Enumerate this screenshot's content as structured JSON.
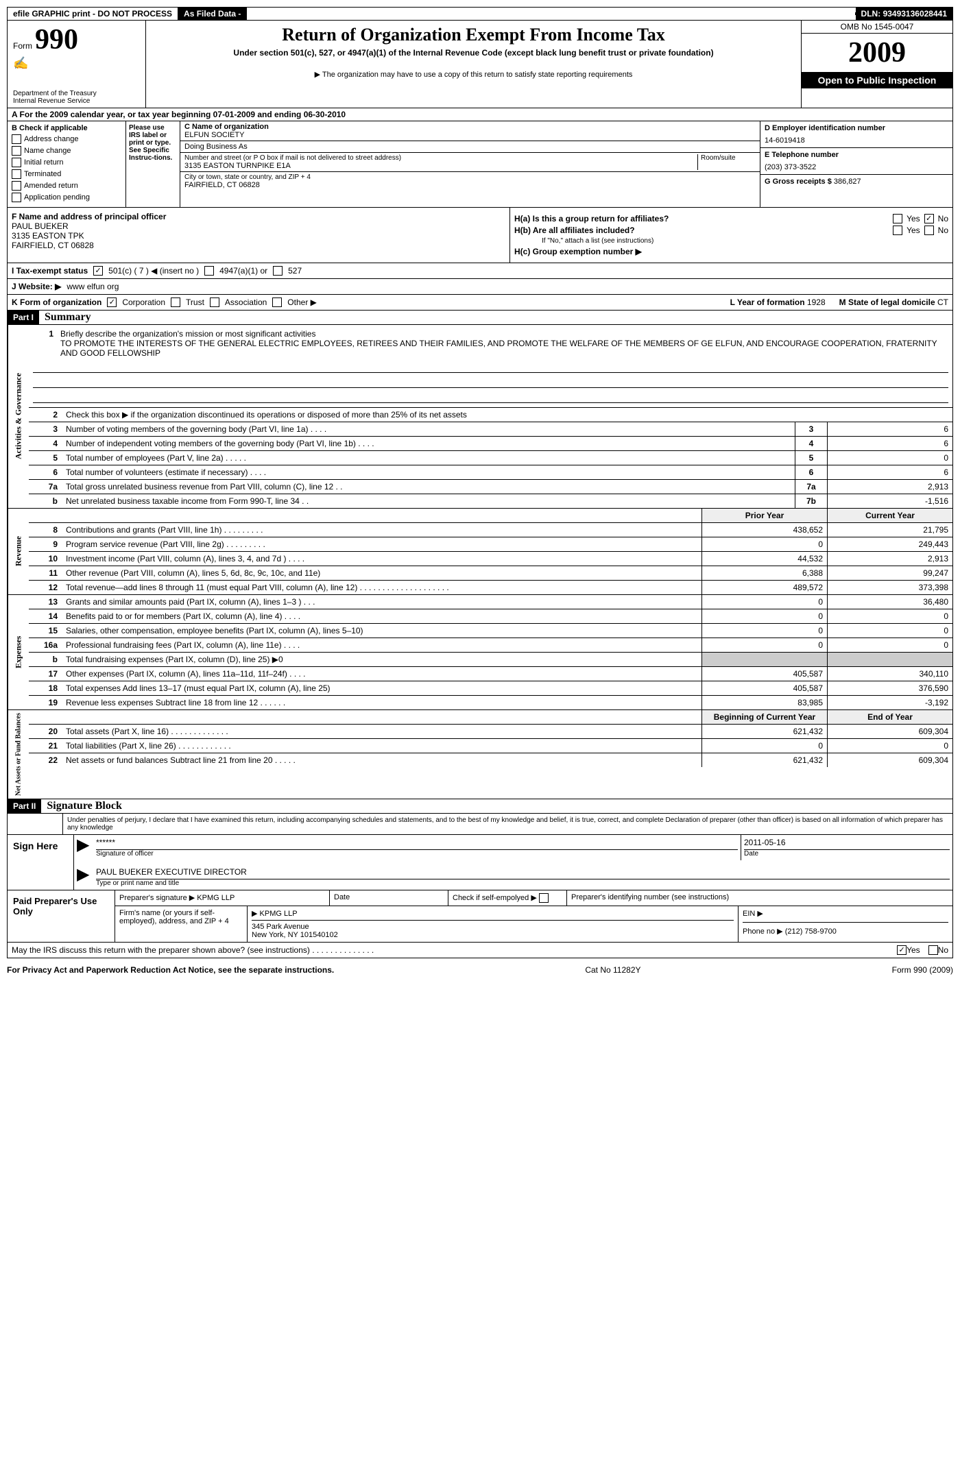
{
  "topbar": {
    "efile": "efile GRAPHIC print - DO NOT PROCESS",
    "asfiled": "As Filed Data -",
    "dln_lbl": "DLN:",
    "dln": "93493136028441"
  },
  "header": {
    "form_label": "Form",
    "form_num": "990",
    "dept1": "Department of the Treasury",
    "dept2": "Internal Revenue Service",
    "title": "Return of Organization Exempt From Income Tax",
    "sub": "Under section 501(c), 527, or 4947(a)(1) of the Internal Revenue Code (except black lung benefit trust or private foundation)",
    "req": "▶ The organization may have to use a copy of this return to satisfy state reporting requirements",
    "omb": "OMB No 1545-0047",
    "year": "2009",
    "inspect": "Open to Public Inspection"
  },
  "sectionA": "A  For the 2009  calendar year, or tax year beginning 07-01-2009    and ending 06-30-2010",
  "colB": {
    "hdr": "B  Check if applicable",
    "items": [
      "Address change",
      "Name change",
      "Initial return",
      "Terminated",
      "Amended return",
      "Application pending"
    ]
  },
  "irs_note": "Please use IRS label or print or type. See Specific Instruc-tions.",
  "colC": {
    "c_lbl": "C Name of organization",
    "c_name": "ELFUN SOCIETY",
    "dba_lbl": "Doing Business As",
    "addr_lbl": "Number and street (or P O  box if mail is not delivered to street address)",
    "room_lbl": "Room/suite",
    "addr": "3135 EASTON TURNPIKE E1A",
    "city_lbl": "City or town, state or country, and ZIP + 4",
    "city": "FAIRFIELD, CT  06828"
  },
  "colD": {
    "d_lbl": "D Employer identification number",
    "ein": "14-6019418",
    "e_lbl": "E Telephone number",
    "phone": "(203) 373-3522",
    "g_lbl": "G Gross receipts $",
    "g_val": "386,827"
  },
  "sectionF": {
    "f_lbl": "F   Name and address of principal officer",
    "name": "PAUL BUEKER",
    "addr1": "3135 EASTON TPK",
    "addr2": "FAIRFIELD, CT  06828"
  },
  "sectionH": {
    "ha": "H(a)  Is this a group return for affiliates?",
    "hb": "H(b)  Are all affiliates included?",
    "hb_note": "If \"No,\" attach a list  (see instructions)",
    "hc": "H(c)   Group exemption number ▶",
    "yes": "Yes",
    "no": "No"
  },
  "rowI": {
    "label": "I   Tax-exempt status",
    "c501": "501(c) ( 7 ) ◀ (insert no )",
    "c4947": "4947(a)(1) or",
    "c527": "527"
  },
  "rowJ": {
    "label": "J  Website: ▶",
    "val": "www elfun org"
  },
  "rowK": {
    "label": "K Form of organization",
    "corp": "Corporation",
    "trust": "Trust",
    "assoc": "Association",
    "other": "Other ▶",
    "l_lbl": "L Year of formation",
    "l_val": "1928",
    "m_lbl": "M State of legal domicile",
    "m_val": "CT"
  },
  "part1": {
    "bar": "Part I",
    "title": "Summary"
  },
  "activities": {
    "side": "Activities & Governance",
    "l1_num": "1",
    "l1": "Briefly describe the organization's mission or most significant activities",
    "mission": "TO PROMOTE THE INTERESTS OF THE GENERAL ELECTRIC EMPLOYEES, RETIREES AND THEIR FAMILIES, AND PROMOTE THE WELFARE OF THE MEMBERS OF GE ELFUN, AND ENCOURAGE COOPERATION, FRATERNITY AND GOOD FELLOWSHIP",
    "l2_num": "2",
    "l2": "Check this box ▶     if the organization discontinued its operations or disposed of more than 25% of its net assets",
    "rows": [
      {
        "n": "3",
        "d": "Number of voting members of the governing body (Part VI, line 1a)   .    .    .    .",
        "r": "3",
        "v": "6"
      },
      {
        "n": "4",
        "d": "Number of independent voting members of the governing body (Part VI, line 1b)   .    .    .    .",
        "r": "4",
        "v": "6"
      },
      {
        "n": "5",
        "d": "Total number of employees (Part V, line 2a)   .    .    .    .    .",
        "r": "5",
        "v": "0"
      },
      {
        "n": "6",
        "d": "Total number of volunteers (estimate if necessary)   .    .    .    .",
        "r": "6",
        "v": "6"
      },
      {
        "n": "7a",
        "d": "Total gross unrelated business revenue from Part VIII, column (C), line 12  .   .",
        "r": "7a",
        "v": "2,913"
      },
      {
        "n": "b",
        "d": "Net unrelated business taxable income from Form 990-T, line 34   .    .",
        "r": "7b",
        "v": "-1,516"
      }
    ]
  },
  "revenue": {
    "side": "Revenue",
    "hdr_prior": "Prior Year",
    "hdr_curr": "Current Year",
    "rows": [
      {
        "n": "8",
        "d": "Contributions and grants (Part VIII, line 1h)   .    .    .    .    .    .    .    .    .",
        "p": "438,652",
        "c": "21,795"
      },
      {
        "n": "9",
        "d": "Program service revenue (Part VIII, line 2g)   .    .    .    .    .    .    .    .    .",
        "p": "0",
        "c": "249,443"
      },
      {
        "n": "10",
        "d": "Investment income (Part VIII, column (A), lines 3, 4, and 7d )   .    .    .    .",
        "p": "44,532",
        "c": "2,913"
      },
      {
        "n": "11",
        "d": "Other revenue (Part VIII, column (A), lines 5, 6d, 8c, 9c, 10c, and 11e)",
        "p": "6,388",
        "c": "99,247"
      },
      {
        "n": "12",
        "d": "Total revenue—add lines 8 through 11 (must equal Part VIII, column (A), line 12)   .    .    .    .    .    .    .    .    .    .    .    .    .    .    .    .    .    .    .    .",
        "p": "489,572",
        "c": "373,398"
      }
    ]
  },
  "expenses": {
    "side": "Expenses",
    "rows": [
      {
        "n": "13",
        "d": "Grants and similar amounts paid (Part IX, column (A), lines 1–3 )   .    .    .",
        "p": "0",
        "c": "36,480"
      },
      {
        "n": "14",
        "d": "Benefits paid to or for members (Part IX, column (A), line 4)   .    .    .    .",
        "p": "0",
        "c": "0"
      },
      {
        "n": "15",
        "d": "Salaries, other compensation, employee benefits (Part IX, column (A), lines 5–10)",
        "p": "0",
        "c": "0"
      },
      {
        "n": "16a",
        "d": "Professional fundraising fees (Part IX, column (A), line 11e)   .    .    .   .",
        "p": "0",
        "c": "0"
      },
      {
        "n": "b",
        "d": "Total fundraising expenses (Part IX, column (D), line 25)  ▶0",
        "p": "",
        "c": "",
        "grey": true
      },
      {
        "n": "17",
        "d": "Other expenses (Part IX, column (A), lines 11a–11d, 11f–24f)   .    .    .    .",
        "p": "405,587",
        "c": "340,110"
      },
      {
        "n": "18",
        "d": "Total expenses  Add lines 13–17 (must equal Part IX, column (A), line 25)",
        "p": "405,587",
        "c": "376,590"
      },
      {
        "n": "19",
        "d": "Revenue less expenses  Subtract line 18 from line 12   .    .    .    .    .    .",
        "p": "83,985",
        "c": "-3,192"
      }
    ]
  },
  "netassets": {
    "side": "Net Assets or Fund Balances",
    "hdr_beg": "Beginning of Current Year",
    "hdr_end": "End of Year",
    "rows": [
      {
        "n": "20",
        "d": "Total assets (Part X, line 16)  .    .    .    .    .    .    .    .    .    .    .    .    .",
        "p": "621,432",
        "c": "609,304"
      },
      {
        "n": "21",
        "d": "Total liabilities (Part X, line 26)   .    .    .    .    .    .    .    .    .    .    .    .",
        "p": "0",
        "c": "0"
      },
      {
        "n": "22",
        "d": "Net assets or fund balances  Subtract line 21 from line 20   .    .    .    .    .",
        "p": "621,432",
        "c": "609,304"
      }
    ]
  },
  "part2": {
    "bar": "Part II",
    "title": "Signature Block"
  },
  "sig": {
    "perjury": "Under penalties of perjury, I declare that I have examined this return, including accompanying schedules and statements, and to the best of my knowledge and belief, it is true, correct, and complete  Declaration of preparer (other than officer) is based on all information of which preparer has any knowledge",
    "sign_here": "Sign Here",
    "stars": "******",
    "sig_lbl": "Signature of officer",
    "date": "2011-05-16",
    "date_lbl": "Date",
    "name": "PAUL BUEKER  EXECUTIVE DIRECTOR",
    "type_lbl": "Type or print name and title"
  },
  "prep": {
    "label": "Paid Preparer's Use Only",
    "sig_lbl": "Preparer's signature",
    "sig_val": "KPMG LLP",
    "date_lbl": "Date",
    "chk_lbl": "Check if self-empolyed ▶",
    "pin_lbl": "Preparer's identifying number (see instructions)",
    "firm_lbl": "Firm's name (or yours if self-employed), address, and ZIP + 4",
    "firm": "KPMG LLP",
    "firm_addr1": "345 Park Avenue",
    "firm_addr2": "New York, NY  101540102",
    "ein_lbl": "EIN ▶",
    "phone_lbl": "Phone no  ▶",
    "phone": "(212) 758-9700"
  },
  "discuss": "May the IRS discuss this return with the preparer shown above? (see instructions)   .    .    .    .    .    .    .    .    .    .    .    .    .    .",
  "yes": "Yes",
  "no": "No",
  "footer": {
    "left": "For Privacy Act and Paperwork Reduction Act Notice, see the separate instructions.",
    "mid": "Cat  No  11282Y",
    "right": "Form 990 (2009)"
  }
}
